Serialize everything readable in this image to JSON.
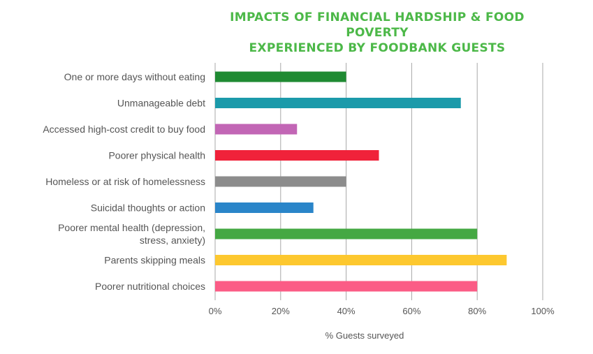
{
  "chart_data": {
    "type": "bar",
    "orientation": "horizontal",
    "title": [
      "IMPACTS OF FINANCIAL HARDSHIP & FOOD POVERTY",
      "EXPERIENCED BY FOODBANK GUESTS"
    ],
    "xlabel": "% Guests surveyed",
    "ylabel": "",
    "xlim": [
      0,
      100
    ],
    "x_ticks": [
      0,
      20,
      40,
      60,
      80,
      100
    ],
    "x_tick_labels": [
      "0%",
      "20%",
      "40%",
      "60%",
      "80%",
      "100%"
    ],
    "grid": "vertical",
    "legend": "none",
    "categories": [
      "One or more days without eating",
      "Unmanageable debt",
      "Accessed high-cost credit to buy food",
      "Poorer physical health",
      "Homeless or at risk of homelessness",
      "Suicidal thoughts or action",
      "Poorer mental health (depression, stress, anxiety)",
      "Parents skipping meals",
      "Poorer nutritional choices"
    ],
    "category_lines": [
      [
        "One or more days without eating"
      ],
      [
        "Unmanageable debt"
      ],
      [
        "Accessed high-cost credit to buy food"
      ],
      [
        "Poorer physical health"
      ],
      [
        "Homeless or at risk of homelessness"
      ],
      [
        "Suicidal thoughts or action"
      ],
      [
        "Poorer mental health (depression,",
        "stress, anxiety)"
      ],
      [
        "Parents skipping meals"
      ],
      [
        "Poorer nutritional choices"
      ]
    ],
    "values": [
      40,
      75,
      25,
      50,
      40,
      30,
      80,
      89,
      80
    ],
    "colors": [
      "#1f8a32",
      "#1b9aaa",
      "#c266b5",
      "#f0223a",
      "#8c8c8c",
      "#2a85c9",
      "#45a843",
      "#fdc82f",
      "#fb5c86"
    ]
  }
}
